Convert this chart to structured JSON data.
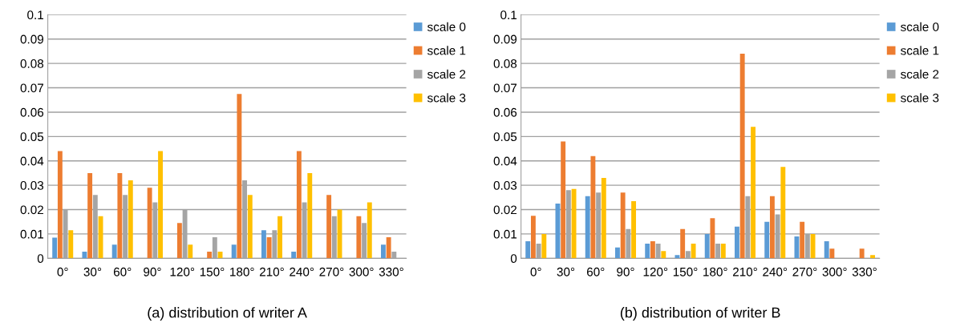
{
  "chart_data": [
    {
      "type": "bar",
      "categories": [
        "0°",
        "30°",
        "60°",
        "90°",
        "120°",
        "150°",
        "180°",
        "210°",
        "240°",
        "270°",
        "300°",
        "330°"
      ],
      "series": [
        {
          "name": "scale 0",
          "color": "#5b9bd5",
          "values": [
            0.0085,
            0.0027,
            0.0056,
            0,
            0,
            0,
            0.0056,
            0.0115,
            0.0027,
            0,
            0,
            0.0056
          ]
        },
        {
          "name": "scale 1",
          "color": "#ed7d31",
          "values": [
            0.044,
            0.035,
            0.035,
            0.029,
            0.0145,
            0.0027,
            0.0675,
            0.0087,
            0.044,
            0.026,
            0.0173,
            0.0087
          ]
        },
        {
          "name": "scale 2",
          "color": "#a5a5a5",
          "values": [
            0.02,
            0.026,
            0.026,
            0.023,
            0.02,
            0.0087,
            0.032,
            0.0115,
            0.023,
            0.0173,
            0.0145,
            0.0027
          ]
        },
        {
          "name": "scale 3",
          "color": "#ffc000",
          "values": [
            0.0115,
            0.0173,
            0.032,
            0.044,
            0.0056,
            0.0027,
            0.026,
            0.0173,
            0.035,
            0.02,
            0.023,
            0
          ]
        }
      ],
      "ylim": [
        0,
        0.1
      ],
      "yticks": [
        0,
        0.01,
        0.02,
        0.03,
        0.04,
        0.05,
        0.06,
        0.07,
        0.08,
        0.09,
        0.1
      ],
      "grid": "y",
      "legend": "right",
      "annotations": [
        "(a) distribution of writer A"
      ]
    },
    {
      "type": "bar",
      "categories": [
        "0°",
        "30°",
        "60°",
        "90°",
        "120°",
        "150°",
        "180°",
        "210°",
        "240°",
        "270°",
        "300°",
        "330°"
      ],
      "series": [
        {
          "name": "scale 0",
          "color": "#5b9bd5",
          "values": [
            0.007,
            0.0225,
            0.0255,
            0.0045,
            0.006,
            0.0013,
            0.01,
            0.013,
            0.015,
            0.009,
            0.007,
            0
          ]
        },
        {
          "name": "scale 1",
          "color": "#ed7d31",
          "values": [
            0.0175,
            0.048,
            0.042,
            0.027,
            0.007,
            0.012,
            0.0165,
            0.084,
            0.0255,
            0.015,
            0.004,
            0.004
          ]
        },
        {
          "name": "scale 2",
          "color": "#a5a5a5",
          "values": [
            0.006,
            0.028,
            0.027,
            0.012,
            0.006,
            0.003,
            0.006,
            0.0255,
            0.018,
            0.01,
            0,
            0
          ]
        },
        {
          "name": "scale 3",
          "color": "#ffc000",
          "values": [
            0.01,
            0.0285,
            0.033,
            0.0235,
            0.003,
            0.006,
            0.006,
            0.054,
            0.0375,
            0.01,
            0,
            0.0013
          ]
        }
      ],
      "ylim": [
        0,
        0.1
      ],
      "yticks": [
        0,
        0.01,
        0.02,
        0.03,
        0.04,
        0.05,
        0.06,
        0.07,
        0.08,
        0.09,
        0.1
      ],
      "grid": "y",
      "legend": "right",
      "annotations": [
        "(b) distribution of writer B"
      ]
    }
  ]
}
